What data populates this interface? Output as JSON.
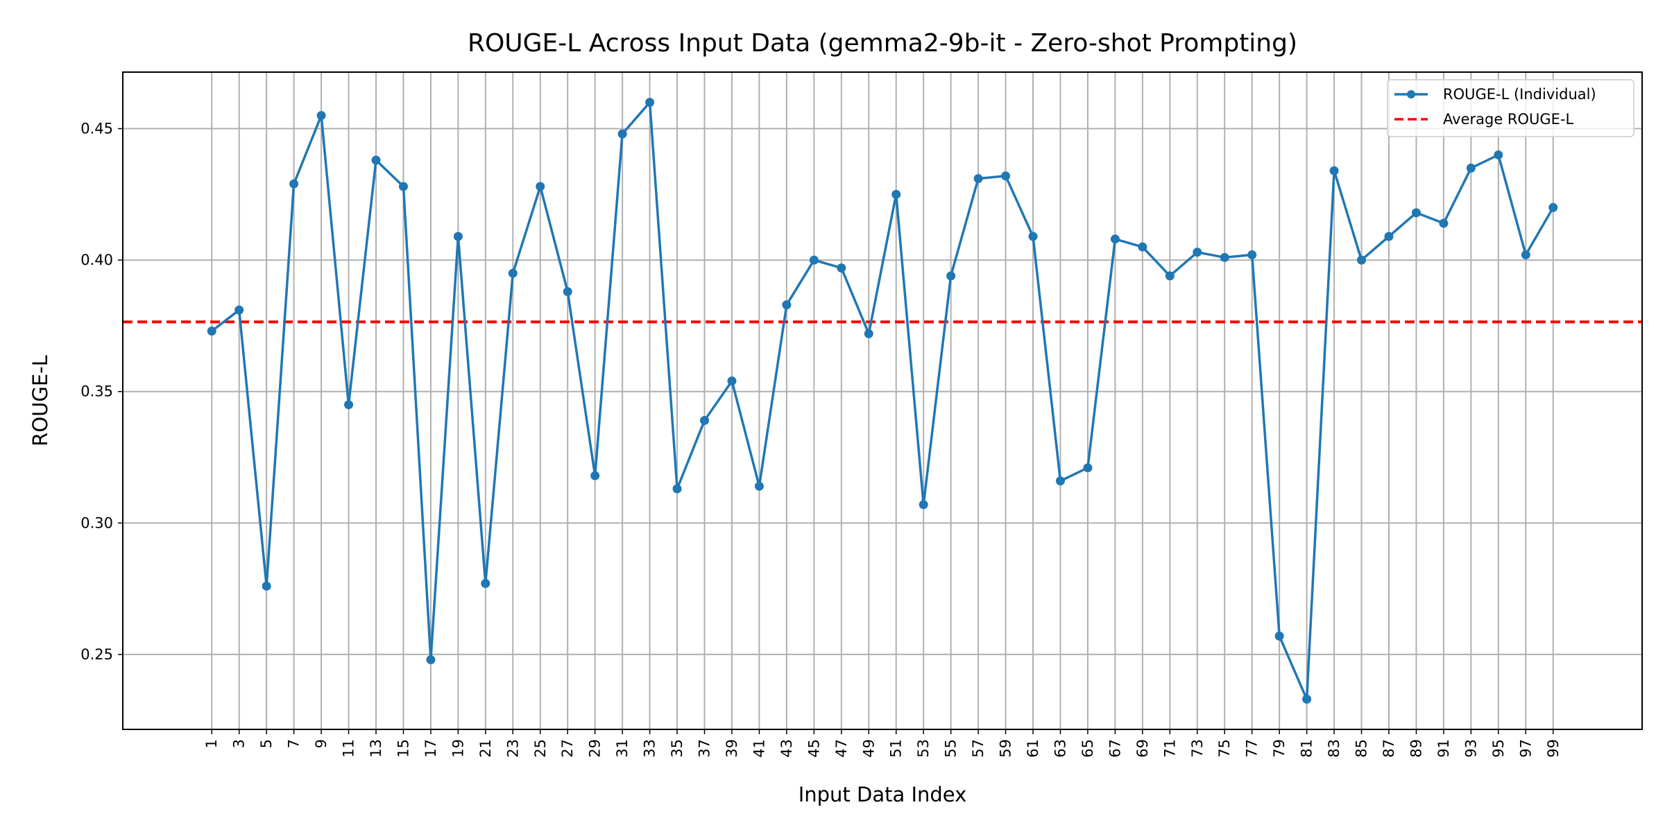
{
  "chart_data": {
    "type": "line",
    "title": "ROUGE-L Across Input Data (gemma2-9b-it - Zero-shot Prompting)",
    "xlabel": "Input Data Index",
    "ylabel": "ROUGE-L",
    "x": [
      1,
      3,
      5,
      7,
      9,
      11,
      13,
      15,
      17,
      19,
      21,
      23,
      25,
      27,
      29,
      31,
      33,
      35,
      37,
      39,
      41,
      43,
      45,
      47,
      49,
      51,
      53,
      55,
      57,
      59,
      61,
      63,
      65,
      67,
      69,
      71,
      73,
      75,
      77,
      79,
      81,
      83,
      85,
      87,
      89,
      91,
      93,
      95,
      97,
      99
    ],
    "series": [
      {
        "name": "ROUGE-L (Individual)",
        "color": "#1f77b4",
        "values": [
          0.373,
          0.381,
          0.276,
          0.429,
          0.455,
          0.345,
          0.438,
          0.428,
          0.248,
          0.409,
          0.277,
          0.395,
          0.428,
          0.388,
          0.318,
          0.448,
          0.46,
          0.313,
          0.339,
          0.354,
          0.314,
          0.383,
          0.4,
          0.397,
          0.372,
          0.425,
          0.307,
          0.394,
          0.431,
          0.432,
          0.409,
          0.316,
          0.321,
          0.408,
          0.405,
          0.394,
          0.403,
          0.401,
          0.402,
          0.257,
          0.233,
          0.434,
          0.4,
          0.409,
          0.418,
          0.414,
          0.435,
          0.44,
          0.402,
          0.42
        ]
      }
    ],
    "average": {
      "name": "Average ROUGE-L",
      "value": 0.3765,
      "color": "#ff0000"
    },
    "xlim": [
      -5.5,
      105.5
    ],
    "ylim": [
      0.2215,
      0.4715
    ],
    "yticks": [
      0.25,
      0.3,
      0.35,
      0.4,
      0.45
    ],
    "yticklabels": [
      "0.25",
      "0.30",
      "0.35",
      "0.40",
      "0.45"
    ],
    "grid": true,
    "legend_position": "top-right"
  }
}
